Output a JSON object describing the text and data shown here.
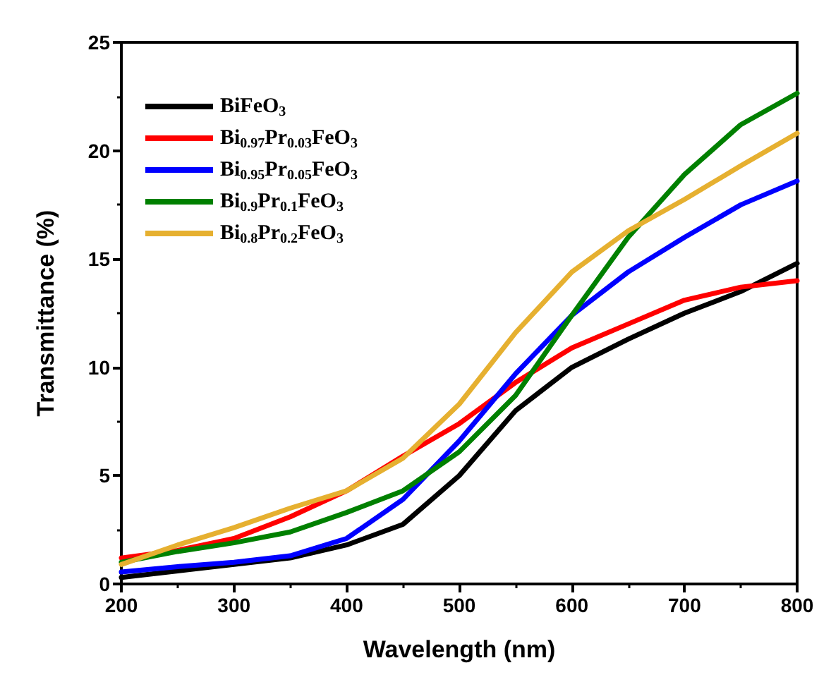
{
  "chart_data": {
    "type": "line",
    "xlabel": "Wavelength (nm)",
    "ylabel": "Transmittance (%)",
    "x": [
      200,
      250,
      300,
      350,
      400,
      450,
      500,
      550,
      600,
      650,
      700,
      750,
      800
    ],
    "xlim": [
      200,
      800
    ],
    "xticks": [
      200,
      300,
      400,
      500,
      600,
      700,
      800
    ],
    "ylim": [
      0,
      25
    ],
    "yticks": [
      0,
      5,
      10,
      15,
      20,
      25
    ],
    "grid": false,
    "legend": "top left",
    "marker": "none",
    "line_style": "solid",
    "series": [
      {
        "name": "BiFeO$_{3}$",
        "color": "#000000",
        "values": [
          0.3,
          0.6,
          0.9,
          1.2,
          1.8,
          2.75,
          5.0,
          8.0,
          10.0,
          11.3,
          12.5,
          13.5,
          14.8
        ]
      },
      {
        "name": "Bi$_{0.97}$Pr$_{0.03}$FeO$_{3}$",
        "color": "#ff0000",
        "values": [
          1.2,
          1.55,
          2.1,
          3.1,
          4.3,
          5.9,
          7.4,
          9.3,
          10.9,
          12.0,
          13.1,
          13.7,
          14.0
        ]
      },
      {
        "name": "Bi$_{0.95}$Pr$_{0.05}$FeO$_{3}$",
        "color": "#0000ff",
        "values": [
          0.55,
          0.8,
          1.0,
          1.3,
          2.1,
          3.9,
          6.6,
          9.7,
          12.4,
          14.4,
          16.0,
          17.5,
          18.6
        ]
      },
      {
        "name": "Bi$_{0.9}$Pr$_{0.1}$FeO$_{3}$",
        "color": "#008000",
        "values": [
          1.0,
          1.5,
          1.9,
          2.4,
          3.3,
          4.3,
          6.1,
          8.7,
          12.4,
          16.0,
          18.9,
          21.2,
          22.65
        ]
      },
      {
        "name": "Bi$_{0.8}$Pr$_{0.2}$FeO$_{3}$",
        "color": "#e6b030",
        "values": [
          0.9,
          1.8,
          2.6,
          3.5,
          4.3,
          5.8,
          8.3,
          11.6,
          14.4,
          16.3,
          17.75,
          19.3,
          20.8
        ]
      }
    ]
  }
}
